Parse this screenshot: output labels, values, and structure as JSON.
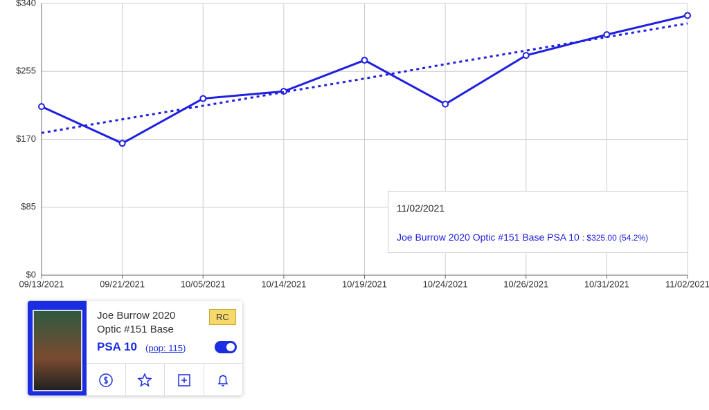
{
  "chart_data": {
    "type": "line",
    "categories": [
      "09/13/2021",
      "09/21/2021",
      "10/05/2021",
      "10/14/2021",
      "10/19/2021",
      "10/24/2021",
      "10/26/2021",
      "10/31/2021",
      "11/02/2021"
    ],
    "series": [
      {
        "name": "Joe Burrow 2020 Optic #151 Base PSA 10",
        "color": "#1f1fe0",
        "style": "solid",
        "markers": true,
        "values": [
          211,
          165,
          221,
          230,
          269,
          214,
          275,
          301,
          325
        ]
      },
      {
        "color": "#1f1fe0",
        "style": "dotted",
        "markers": false,
        "values": [
          178,
          195,
          212,
          229,
          246,
          264,
          281,
          298,
          315
        ]
      }
    ],
    "ylim": [
      0,
      340
    ],
    "yticks": [
      {
        "value": 0,
        "label": "$0"
      },
      {
        "value": 85,
        "label": "$85"
      },
      {
        "value": 170,
        "label": "$170"
      },
      {
        "value": 255,
        "label": "$255"
      },
      {
        "value": 340,
        "label": "$340"
      }
    ],
    "grid": true,
    "tooltip": {
      "index": 8,
      "detail": ": $325.00 (54.2%)"
    }
  },
  "card": {
    "title": "Joe Burrow 2020 Optic #151 Base",
    "badge": "RC",
    "grade": "PSA 10",
    "pop": "pop: 115"
  }
}
